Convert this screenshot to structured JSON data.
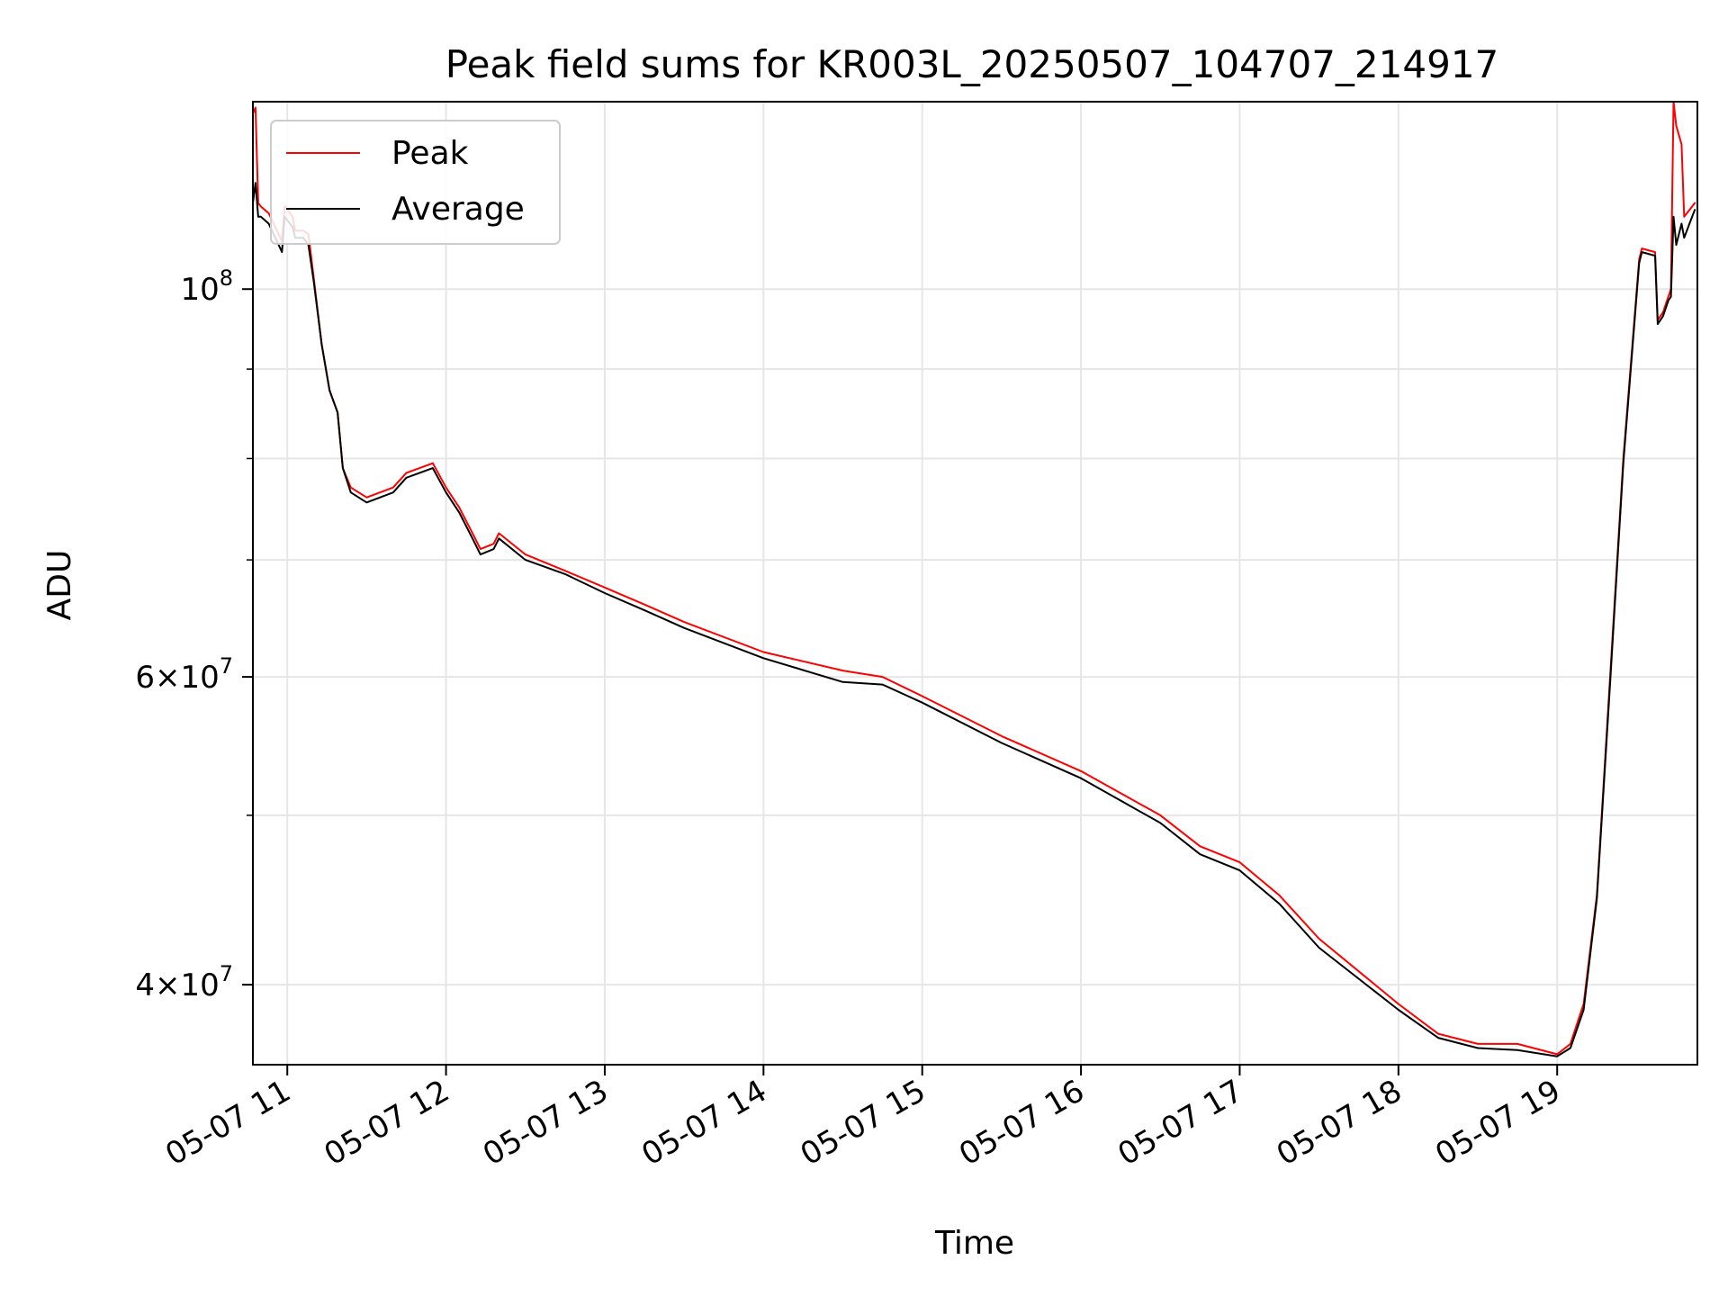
{
  "chart_data": {
    "type": "line",
    "title": "Peak field sums for KR003L_20250507_104707_214917",
    "xlabel": "Time",
    "ylabel": "ADU",
    "yscale": "log",
    "xlim": [
      "2025-05-07 10:47",
      "2025-05-07 19:53"
    ],
    "ylim": [
      36000000,
      128000000
    ],
    "grid": true,
    "legend_position": "top-left",
    "x_tick_labels": [
      "05-07 11",
      "05-07 12",
      "05-07 13",
      "05-07 14",
      "05-07 15",
      "05-07 16",
      "05-07 17",
      "05-07 18",
      "05-07 19"
    ],
    "x_ticks": [
      "2025-05-07 11:00",
      "2025-05-07 12:00",
      "2025-05-07 13:00",
      "2025-05-07 14:00",
      "2025-05-07 15:00",
      "2025-05-07 16:00",
      "2025-05-07 17:00",
      "2025-05-07 18:00",
      "2025-05-07 19:00"
    ],
    "y_major_ticks": [
      {
        "value": 100000000,
        "base": "10",
        "exp": "8",
        "coef": ""
      },
      {
        "value": 60000000,
        "base": "10",
        "exp": "7",
        "coef": "6"
      },
      {
        "value": 40000000,
        "base": "10",
        "exp": "7",
        "coef": "4"
      }
    ],
    "y_minor_ticks": [
      50000000,
      70000000,
      80000000,
      90000000
    ],
    "series": [
      {
        "name": "Peak",
        "color": "#ff0000",
        "x": [
          "2025-05-07 10:47",
          "2025-05-07 10:48",
          "2025-05-07 10:49",
          "2025-05-07 10:50",
          "2025-05-07 10:53",
          "2025-05-07 10:58",
          "2025-05-07 10:59",
          "2025-05-07 11:02",
          "2025-05-07 11:03",
          "2025-05-07 11:06",
          "2025-05-07 11:08",
          "2025-05-07 11:10",
          "2025-05-07 11:13",
          "2025-05-07 11:16",
          "2025-05-07 11:19",
          "2025-05-07 11:21",
          "2025-05-07 11:24",
          "2025-05-07 11:30",
          "2025-05-07 11:40",
          "2025-05-07 11:45",
          "2025-05-07 11:50",
          "2025-05-07 11:55",
          "2025-05-07 12:00",
          "2025-05-07 12:05",
          "2025-05-07 12:10",
          "2025-05-07 12:13",
          "2025-05-07 12:18",
          "2025-05-07 12:20",
          "2025-05-07 12:30",
          "2025-05-07 12:45",
          "2025-05-07 13:00",
          "2025-05-07 13:15",
          "2025-05-07 13:30",
          "2025-05-07 14:00",
          "2025-05-07 14:30",
          "2025-05-07 14:45",
          "2025-05-07 15:00",
          "2025-05-07 15:30",
          "2025-05-07 16:00",
          "2025-05-07 16:30",
          "2025-05-07 16:45",
          "2025-05-07 17:00",
          "2025-05-07 17:15",
          "2025-05-07 17:30",
          "2025-05-07 18:00",
          "2025-05-07 18:15",
          "2025-05-07 18:30",
          "2025-05-07 18:45",
          "2025-05-07 19:00",
          "2025-05-07 19:05",
          "2025-05-07 19:10",
          "2025-05-07 19:15",
          "2025-05-07 19:20",
          "2025-05-07 19:25",
          "2025-05-07 19:31",
          "2025-05-07 19:32",
          "2025-05-07 19:37",
          "2025-05-07 19:38",
          "2025-05-07 19:40",
          "2025-05-07 19:42",
          "2025-05-07 19:43",
          "2025-05-07 19:44",
          "2025-05-07 19:45",
          "2025-05-07 19:47",
          "2025-05-07 19:48",
          "2025-05-07 19:50",
          "2025-05-07 19:52"
        ],
        "values": [
          126000000,
          127000000,
          112000000,
          111500000,
          110500000,
          106500000,
          111500000,
          110000000,
          108000000,
          108000000,
          107500000,
          101500000,
          93000000,
          87500000,
          85000000,
          79000000,
          77000000,
          76000000,
          77000000,
          78500000,
          79000000,
          79500000,
          77000000,
          75000000,
          72500000,
          71000000,
          71500000,
          72500000,
          70500000,
          69000000,
          67500000,
          66000000,
          64500000,
          62000000,
          60500000,
          60000000,
          58500000,
          55500000,
          53000000,
          50000000,
          48000000,
          47000000,
          45000000,
          42500000,
          39000000,
          37500000,
          37000000,
          37000000,
          36500000,
          37000000,
          39000000,
          45000000,
          60000000,
          80000000,
          104000000,
          105500000,
          105000000,
          96000000,
          97000000,
          99000000,
          100000000,
          128000000,
          124000000,
          121000000,
          110000000,
          111000000,
          112000000
        ]
      },
      {
        "name": "Average",
        "color": "#000000",
        "x": [
          "2025-05-07 10:47",
          "2025-05-07 10:48",
          "2025-05-07 10:49",
          "2025-05-07 10:50",
          "2025-05-07 10:53",
          "2025-05-07 10:58",
          "2025-05-07 10:59",
          "2025-05-07 11:02",
          "2025-05-07 11:03",
          "2025-05-07 11:06",
          "2025-05-07 11:08",
          "2025-05-07 11:10",
          "2025-05-07 11:13",
          "2025-05-07 11:16",
          "2025-05-07 11:19",
          "2025-05-07 11:21",
          "2025-05-07 11:24",
          "2025-05-07 11:30",
          "2025-05-07 11:40",
          "2025-05-07 11:45",
          "2025-05-07 11:50",
          "2025-05-07 11:55",
          "2025-05-07 12:00",
          "2025-05-07 12:05",
          "2025-05-07 12:10",
          "2025-05-07 12:13",
          "2025-05-07 12:18",
          "2025-05-07 12:20",
          "2025-05-07 12:30",
          "2025-05-07 12:45",
          "2025-05-07 13:00",
          "2025-05-07 13:15",
          "2025-05-07 13:30",
          "2025-05-07 14:00",
          "2025-05-07 14:30",
          "2025-05-07 14:45",
          "2025-05-07 15:00",
          "2025-05-07 15:30",
          "2025-05-07 16:00",
          "2025-05-07 16:30",
          "2025-05-07 16:45",
          "2025-05-07 17:00",
          "2025-05-07 17:15",
          "2025-05-07 17:30",
          "2025-05-07 18:00",
          "2025-05-07 18:15",
          "2025-05-07 18:30",
          "2025-05-07 18:45",
          "2025-05-07 19:00",
          "2025-05-07 19:05",
          "2025-05-07 19:10",
          "2025-05-07 19:15",
          "2025-05-07 19:20",
          "2025-05-07 19:25",
          "2025-05-07 19:31",
          "2025-05-07 19:32",
          "2025-05-07 19:37",
          "2025-05-07 19:38",
          "2025-05-07 19:40",
          "2025-05-07 19:42",
          "2025-05-07 19:43",
          "2025-05-07 19:44",
          "2025-05-07 19:45",
          "2025-05-07 19:47",
          "2025-05-07 19:48",
          "2025-05-07 19:50",
          "2025-05-07 19:52"
        ],
        "values": [
          112000000,
          115000000,
          110000000,
          110000000,
          109000000,
          105000000,
          110000000,
          108500000,
          107000000,
          107000000,
          106000000,
          101000000,
          93000000,
          87500000,
          85000000,
          79000000,
          76500000,
          75500000,
          76500000,
          78000000,
          78500000,
          79000000,
          76500000,
          74500000,
          72000000,
          70500000,
          71000000,
          72000000,
          70000000,
          68700000,
          67000000,
          65500000,
          64000000,
          61500000,
          59600000,
          59400000,
          58000000,
          55000000,
          52500000,
          49500000,
          47500000,
          46500000,
          44500000,
          42000000,
          38700000,
          37300000,
          36800000,
          36700000,
          36400000,
          36800000,
          38700000,
          44800000,
          59500000,
          79500000,
          103500000,
          105000000,
          104500000,
          95500000,
          96500000,
          98500000,
          99000000,
          110000000,
          106000000,
          109000000,
          107000000,
          109000000,
          111000000
        ]
      }
    ]
  }
}
